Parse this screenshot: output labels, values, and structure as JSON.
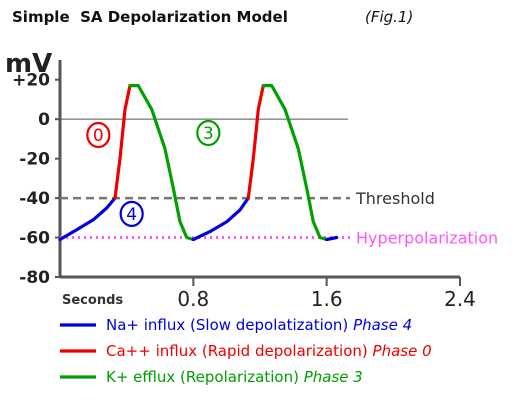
{
  "chart_data": {
    "type": "line",
    "title": "Simple  SA Depolarization Model",
    "title_fig": "(Fig.1)",
    "ylabel": "mV",
    "xlabel": "Seconds",
    "xlim": [
      0,
      2.4
    ],
    "ylim": [
      -80,
      30
    ],
    "y_ticks": [
      {
        "value": 20,
        "label": "+20"
      },
      {
        "value": 0,
        "label": "0"
      },
      {
        "value": -20,
        "label": "-20"
      },
      {
        "value": -40,
        "label": "-40"
      },
      {
        "value": -60,
        "label": "-60"
      },
      {
        "value": -80,
        "label": "-80"
      }
    ],
    "x_ticks": [
      {
        "value": 0.8,
        "label": "0.8"
      },
      {
        "value": 1.6,
        "label": "1.6"
      },
      {
        "value": 2.4,
        "label": "2.4"
      }
    ],
    "reference_lines": [
      {
        "name": "zero",
        "y": 0,
        "label": "",
        "color": "#555555",
        "style": "solid"
      },
      {
        "name": "threshold",
        "y": -40,
        "label": "Threshold",
        "color": "#777777",
        "style": "dashed"
      },
      {
        "name": "hyperpolarization",
        "y": -60,
        "label": "Hyperpolarization",
        "color": "#ff55ff",
        "style": "dotted"
      }
    ],
    "series": [
      {
        "phase": "4",
        "color": "#0000dd",
        "points": [
          [
            0.0,
            -61
          ],
          [
            0.1,
            -56
          ],
          [
            0.2,
            -51
          ],
          [
            0.28,
            -45
          ],
          [
            0.33,
            -40
          ]
        ]
      },
      {
        "phase": "0",
        "color": "#ee0000",
        "points": [
          [
            0.33,
            -40
          ],
          [
            0.36,
            -20
          ],
          [
            0.39,
            5
          ],
          [
            0.42,
            17
          ]
        ]
      },
      {
        "phase": "3",
        "color": "#00a000",
        "points": [
          [
            0.42,
            17
          ],
          [
            0.47,
            17
          ],
          [
            0.55,
            5
          ],
          [
            0.63,
            -15
          ],
          [
            0.68,
            -35
          ],
          [
            0.72,
            -52
          ],
          [
            0.76,
            -60
          ],
          [
            0.8,
            -61
          ]
        ]
      },
      {
        "phase": "4",
        "color": "#0000dd",
        "points": [
          [
            0.8,
            -61
          ],
          [
            0.9,
            -57
          ],
          [
            1.0,
            -52
          ],
          [
            1.08,
            -46
          ],
          [
            1.13,
            -40
          ]
        ]
      },
      {
        "phase": "0",
        "color": "#ee0000",
        "points": [
          [
            1.13,
            -40
          ],
          [
            1.16,
            -20
          ],
          [
            1.19,
            5
          ],
          [
            1.22,
            17
          ]
        ]
      },
      {
        "phase": "3",
        "color": "#00a000",
        "points": [
          [
            1.22,
            17
          ],
          [
            1.27,
            17
          ],
          [
            1.35,
            5
          ],
          [
            1.43,
            -15
          ],
          [
            1.48,
            -35
          ],
          [
            1.52,
            -52
          ],
          [
            1.56,
            -60
          ],
          [
            1.6,
            -61
          ]
        ]
      },
      {
        "phase": "4",
        "color": "#0000dd",
        "points": [
          [
            1.6,
            -61
          ],
          [
            1.66,
            -60
          ]
        ]
      }
    ],
    "phase_markers": [
      {
        "label": "0",
        "color": "#ee0000",
        "x": 0.23,
        "y": -8
      },
      {
        "label": "3",
        "color": "#00a000",
        "x": 0.89,
        "y": -7
      },
      {
        "label": "4",
        "color": "#0000dd",
        "x": 0.43,
        "y": -48
      }
    ],
    "legend": [
      {
        "color": "#0000dd",
        "text": "Na+ influx (Slow depolatization)",
        "phase": "Phase 4"
      },
      {
        "color": "#ee0000",
        "text": "Ca++ influx (Rapid depolarization)",
        "phase": "Phase 0"
      },
      {
        "color": "#00a000",
        "text": "K+ efflux (Repolarization)",
        "phase": "Phase 3"
      }
    ]
  }
}
